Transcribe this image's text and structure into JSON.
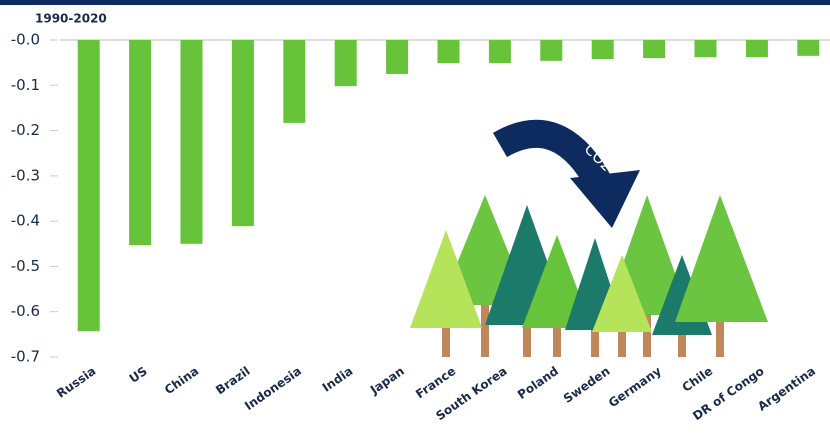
{
  "chart_data": {
    "type": "bar",
    "subtitle": "1990-2020",
    "annotation": "CO2",
    "categories": [
      "Russia",
      "US",
      "China",
      "Brazil",
      "Indonesia",
      "India",
      "Japan",
      "France",
      "South Korea",
      "Poland",
      "Sweden",
      "Germany",
      "Chile",
      "DR of Congo",
      "Argentina"
    ],
    "values": [
      -0.643,
      -0.453,
      -0.45,
      -0.411,
      -0.183,
      -0.102,
      -0.075,
      -0.051,
      -0.051,
      -0.046,
      -0.042,
      -0.04,
      -0.038,
      -0.038,
      -0.035
    ],
    "color": "#66c33a",
    "ylim": [
      -0.7,
      0
    ],
    "yticks": [
      {
        "value": 0,
        "label": "-0.0"
      },
      -0.1,
      -0.2,
      -0.3,
      -0.4,
      -0.5,
      -0.6,
      -0.7
    ],
    "grid": false
  }
}
